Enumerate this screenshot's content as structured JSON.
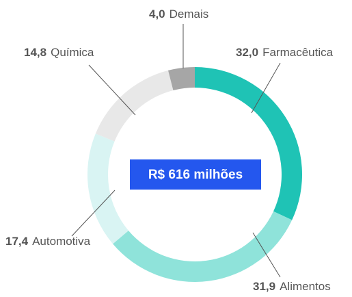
{
  "chart_data": {
    "type": "donut",
    "categories": [
      "Farmacêutica",
      "Alimentos",
      "Automotiva",
      "Química",
      "Demais"
    ],
    "values": [
      32.0,
      31.9,
      17.4,
      14.8,
      4.0
    ],
    "value_labels": [
      "32,0",
      "31,9",
      "17,4",
      "14,8",
      "4,0"
    ],
    "colors": [
      "#1fc3b5",
      "#8fe3da",
      "#d9f4f3",
      "#e8e8e8",
      "#a6a6a6"
    ],
    "center_label": "R$ 616 milhões"
  }
}
